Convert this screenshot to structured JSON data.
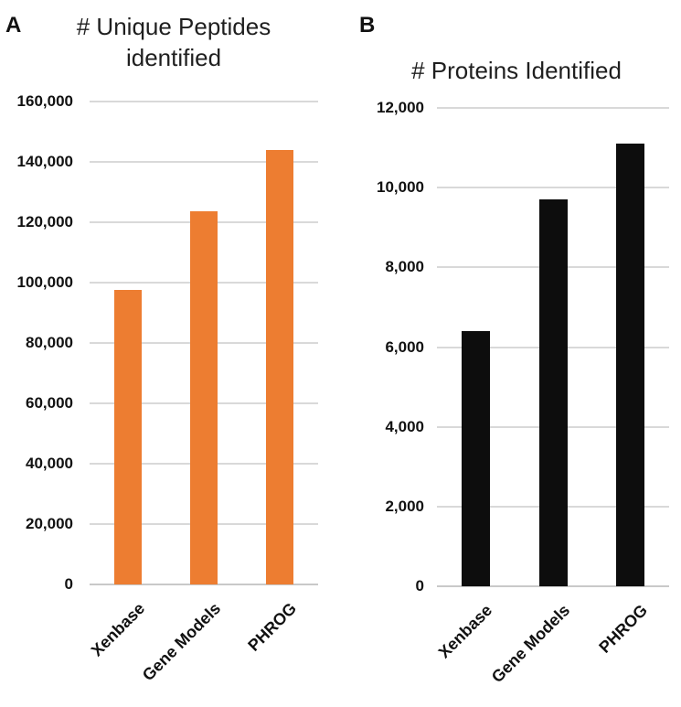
{
  "panels": [
    {
      "label": "A",
      "title": "# Unique Peptides\nidentified"
    },
    {
      "label": "B",
      "title": "# Proteins Identified"
    }
  ],
  "chart_data": [
    {
      "type": "bar",
      "panel": "A",
      "title": "# Unique Peptides identified",
      "categories": [
        "Xenbase",
        "Gene Models",
        "PHROG"
      ],
      "values": [
        97700,
        123500,
        143900
      ],
      "xlabel": "",
      "ylabel": "",
      "ylim": [
        0,
        160000
      ],
      "yticks": [
        "0",
        "20,000",
        "40,000",
        "60,000",
        "80,000",
        "100,000",
        "120,000",
        "140,000",
        "160,000"
      ],
      "bar_color": "#ED7D31",
      "grid": true,
      "legend": "none"
    },
    {
      "type": "bar",
      "panel": "B",
      "title": "# Proteins Identified",
      "categories": [
        "Xenbase",
        "Gene Models",
        "PHROG"
      ],
      "values": [
        6400,
        9700,
        11100
      ],
      "xlabel": "",
      "ylabel": "",
      "ylim": [
        0,
        12000
      ],
      "yticks": [
        "0",
        "2,000",
        "4,000",
        "6,000",
        "8,000",
        "10,000",
        "12,000"
      ],
      "bar_color": "#0D0D0D",
      "grid": true,
      "legend": "none"
    }
  ],
  "colors": {
    "gridline": "#D9D9D9",
    "baseline": "#C9C9C9",
    "text": "#1A1A1A"
  }
}
